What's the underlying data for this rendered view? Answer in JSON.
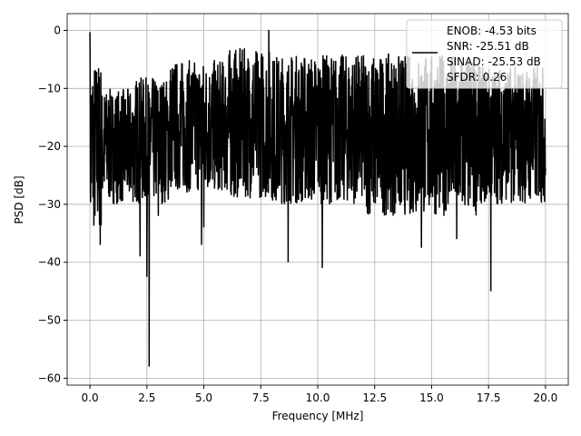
{
  "chart_data": {
    "type": "line",
    "xlabel": "Frequency [MHz]",
    "ylabel": "PSD [dB]",
    "xlim": [
      -1.0,
      21.0
    ],
    "ylim": [
      -61.2,
      2.9
    ],
    "xticks": [
      0.0,
      2.5,
      5.0,
      7.5,
      10.0,
      12.5,
      15.0,
      17.5,
      20.0
    ],
    "xtick_labels": [
      "0.0",
      "2.5",
      "5.0",
      "7.5",
      "10.0",
      "12.5",
      "15.0",
      "17.5",
      "20.0"
    ],
    "yticks": [
      0,
      -10,
      -20,
      -30,
      -40,
      -50,
      -60
    ],
    "ytick_labels": [
      "0",
      "−10",
      "−20",
      "−30",
      "−40",
      "−50",
      "−60"
    ],
    "grid": true,
    "series": [
      {
        "name": "PSD",
        "color": "#000000",
        "envelope": [
          {
            "x0": 0.0,
            "x1": 0.5,
            "upper": -5,
            "lower": -35
          },
          {
            "x0": 0.5,
            "x1": 2.0,
            "upper": -10,
            "lower": -30
          },
          {
            "x0": 2.0,
            "x1": 3.5,
            "upper": -8,
            "lower": -30
          },
          {
            "x0": 3.5,
            "x1": 6.0,
            "upper": -5,
            "lower": -28
          },
          {
            "x0": 6.0,
            "x1": 8.0,
            "upper": -3,
            "lower": -29
          },
          {
            "x0": 8.0,
            "x1": 12.0,
            "upper": -4,
            "lower": -30
          },
          {
            "x0": 12.0,
            "x1": 17.0,
            "upper": -4,
            "lower": -32
          },
          {
            "x0": 17.0,
            "x1": 20.0,
            "upper": -6,
            "lower": -30
          }
        ],
        "spikes": [
          [
            0.0,
            -0.3
          ],
          [
            0.05,
            -13
          ],
          [
            0.45,
            -37
          ],
          [
            2.2,
            -39
          ],
          [
            2.5,
            -42.5
          ],
          [
            2.6,
            -58
          ],
          [
            5.0,
            -34
          ],
          [
            7.85,
            0.1
          ],
          [
            8.7,
            -40
          ],
          [
            10.2,
            -41
          ],
          [
            14.55,
            -37.5
          ],
          [
            16.1,
            -36
          ],
          [
            17.6,
            -45
          ],
          [
            3.0,
            -32
          ],
          [
            4.9,
            -37
          ]
        ]
      }
    ],
    "legend": {
      "placement": "upper-right",
      "entries": [
        "ENOB: -4.53 bits",
        "SNR: -25.51 dB",
        "SINAD: -25.53 dB",
        "SFDR: 0.26"
      ]
    }
  }
}
